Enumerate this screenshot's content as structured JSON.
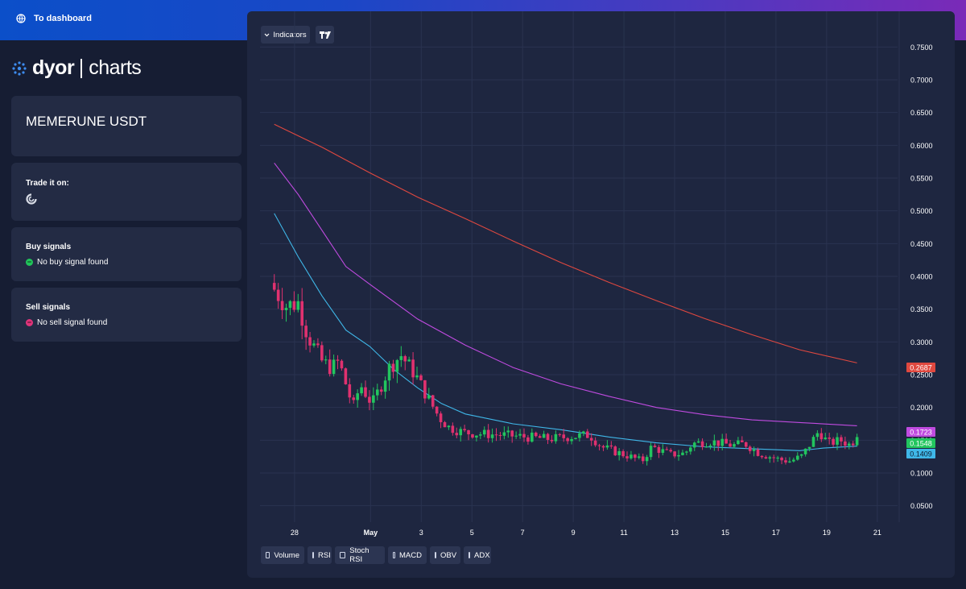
{
  "header": {
    "dashboard_link": "To dashboard",
    "dashboard_icon": "globe-icon"
  },
  "logo": {
    "brand": "dyor",
    "product": "charts"
  },
  "pair": {
    "title": "MEMERUNE USDT"
  },
  "trade": {
    "label": "Trade it on:",
    "exchange_icon": "exchange-logo-icon"
  },
  "buy_signals": {
    "label": "Buy signals",
    "status": "No buy signal found"
  },
  "sell_signals": {
    "label": "Sell signals",
    "status": "No sell signal found"
  },
  "toolbar": {
    "indicators_label": "Indicators",
    "tv_icon": "tradingview-icon"
  },
  "indicator_toggles": [
    {
      "label": "Volume",
      "checked": false
    },
    {
      "label": "RSI",
      "checked": false
    },
    {
      "label": "Stoch RSI",
      "checked": false
    },
    {
      "label": "MACD",
      "checked": false
    },
    {
      "label": "OBV",
      "checked": false
    },
    {
      "label": "ADX",
      "checked": false
    }
  ],
  "colors": {
    "up": "#22c55e",
    "down": "#e0316f",
    "ma_fast": "#3fb7e8",
    "ma_mid": "#c04be0",
    "ma_slow": "#e0483f",
    "grid": "#2a3350",
    "panel": "#1e2640"
  },
  "chart_data": {
    "type": "candlestick",
    "title": "",
    "x_tick_labels": [
      "28",
      "May",
      "3",
      "5",
      "7",
      "9",
      "11",
      "13",
      "15",
      "17",
      "19",
      "21"
    ],
    "y_tick_labels": [
      "0.7500",
      "0.7000",
      "0.6500",
      "0.6000",
      "0.5500",
      "0.5000",
      "0.4500",
      "0.4000",
      "0.3500",
      "0.3000",
      "0.2500",
      "0.2000",
      "0.1500",
      "0.1000",
      "0.0500"
    ],
    "ylim": [
      0.025,
      0.775
    ],
    "price_labels": [
      {
        "value": 0.2687,
        "series": "ma_slow",
        "text": "0.2687"
      },
      {
        "value": 0.1723,
        "series": "ma_mid",
        "text": "0.1723"
      },
      {
        "value": 0.1548,
        "series": "last_price",
        "text": "0.1548"
      },
      {
        "value": 0.1409,
        "series": "ma_fast",
        "text": "0.1409"
      }
    ],
    "series": [
      {
        "key": "ma_slow",
        "x": [
          0,
          2,
          4,
          6,
          8,
          10,
          12,
          14,
          16,
          18,
          20,
          22,
          24.4
        ],
        "values": [
          0.632,
          0.597,
          0.558,
          0.521,
          0.488,
          0.454,
          0.421,
          0.391,
          0.363,
          0.336,
          0.311,
          0.288,
          0.268
        ]
      },
      {
        "key": "ma_mid",
        "x": [
          0,
          1,
          2,
          3,
          4,
          6,
          8,
          10,
          12,
          14,
          16,
          18,
          20,
          22,
          24.4
        ],
        "values": [
          0.573,
          0.525,
          0.47,
          0.415,
          0.388,
          0.335,
          0.295,
          0.261,
          0.236,
          0.217,
          0.2,
          0.189,
          0.181,
          0.177,
          0.172
        ]
      },
      {
        "key": "ma_fast",
        "x": [
          0,
          1,
          2,
          3,
          4,
          5,
          6,
          7,
          8,
          10,
          12,
          14,
          16,
          18,
          20,
          22,
          23,
          24.4
        ],
        "values": [
          0.496,
          0.43,
          0.37,
          0.318,
          0.293,
          0.258,
          0.23,
          0.206,
          0.19,
          0.175,
          0.166,
          0.155,
          0.146,
          0.14,
          0.137,
          0.134,
          0.138,
          0.141
        ]
      }
    ],
    "candle_anchors": {
      "x": [
        0,
        0.5,
        1.0,
        1.4,
        2.0,
        2.4,
        2.7,
        3.3,
        3.6,
        4.1,
        4.8,
        5.3,
        5.9,
        6.5,
        6.9,
        7.3,
        7.9,
        8.5,
        9.5,
        10.5,
        11.5,
        12.3,
        13.2,
        13.7,
        14.3,
        14.9,
        15.4,
        15.8,
        16.6,
        17.2,
        17.5,
        18.3,
        19.2,
        19.7,
        20.3,
        21.2,
        21.6,
        22.1,
        22.8,
        23.2,
        23.7,
        24.1,
        24.4
      ],
      "close": [
        0.38,
        0.355,
        0.36,
        0.31,
        0.27,
        0.26,
        0.27,
        0.2,
        0.235,
        0.205,
        0.26,
        0.28,
        0.25,
        0.21,
        0.185,
        0.17,
        0.162,
        0.16,
        0.158,
        0.155,
        0.152,
        0.155,
        0.158,
        0.14,
        0.132,
        0.125,
        0.118,
        0.14,
        0.128,
        0.13,
        0.145,
        0.148,
        0.142,
        0.145,
        0.13,
        0.12,
        0.118,
        0.126,
        0.164,
        0.145,
        0.15,
        0.143,
        0.155
      ]
    }
  }
}
